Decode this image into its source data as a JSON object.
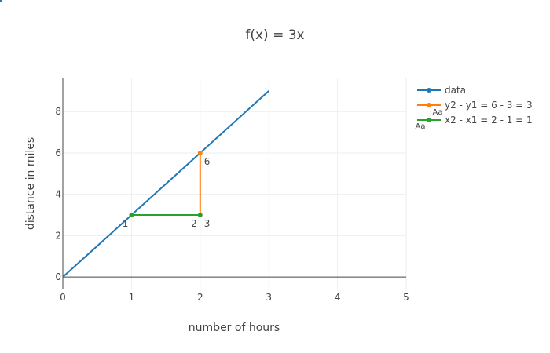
{
  "chart_data": {
    "type": "line",
    "title": "f(x) = 3x",
    "xlabel": "number of hours",
    "ylabel": "distance in miles",
    "xlim": [
      0,
      5
    ],
    "ylim": [
      -0.6,
      9.6
    ],
    "x_ticks": [
      0,
      1,
      2,
      3,
      4,
      5
    ],
    "y_ticks": [
      0,
      2,
      4,
      6,
      8
    ],
    "x_tick_labels": [
      "0",
      "1",
      "2",
      "3",
      "4",
      "5"
    ],
    "y_tick_labels": [
      "0",
      "2",
      "4",
      "6",
      "8"
    ],
    "grid": true,
    "legend_position": "top-right",
    "series": [
      {
        "name": "data",
        "color": "#1f77b4",
        "x": [
          0,
          3
        ],
        "y": [
          0,
          9
        ],
        "markers": [
          3
        ]
      },
      {
        "name": "y2 - y1 = 6 - 3 = 3",
        "color": "#ff7f0e",
        "x": [
          2,
          2
        ],
        "y": [
          3,
          6
        ],
        "markers": [
          1
        ]
      },
      {
        "name": "x2 - x1 = 2 - 1 = 1",
        "color": "#2ca02c",
        "x": [
          1,
          2
        ],
        "y": [
          3,
          3
        ],
        "markers": [
          0,
          1
        ]
      }
    ],
    "point_labels": [
      {
        "x": 2,
        "y": 6,
        "text": "6",
        "pos": "bottom-right"
      },
      {
        "x": 2,
        "y": 3,
        "text": "3",
        "pos": "bottom-right"
      },
      {
        "x": 2,
        "y": 3,
        "text": "2",
        "pos": "bottom-left"
      },
      {
        "x": 1,
        "y": 3,
        "text": "1",
        "pos": "bottom-left"
      }
    ],
    "legend_marks": [
      "Aa",
      "Aa"
    ]
  }
}
